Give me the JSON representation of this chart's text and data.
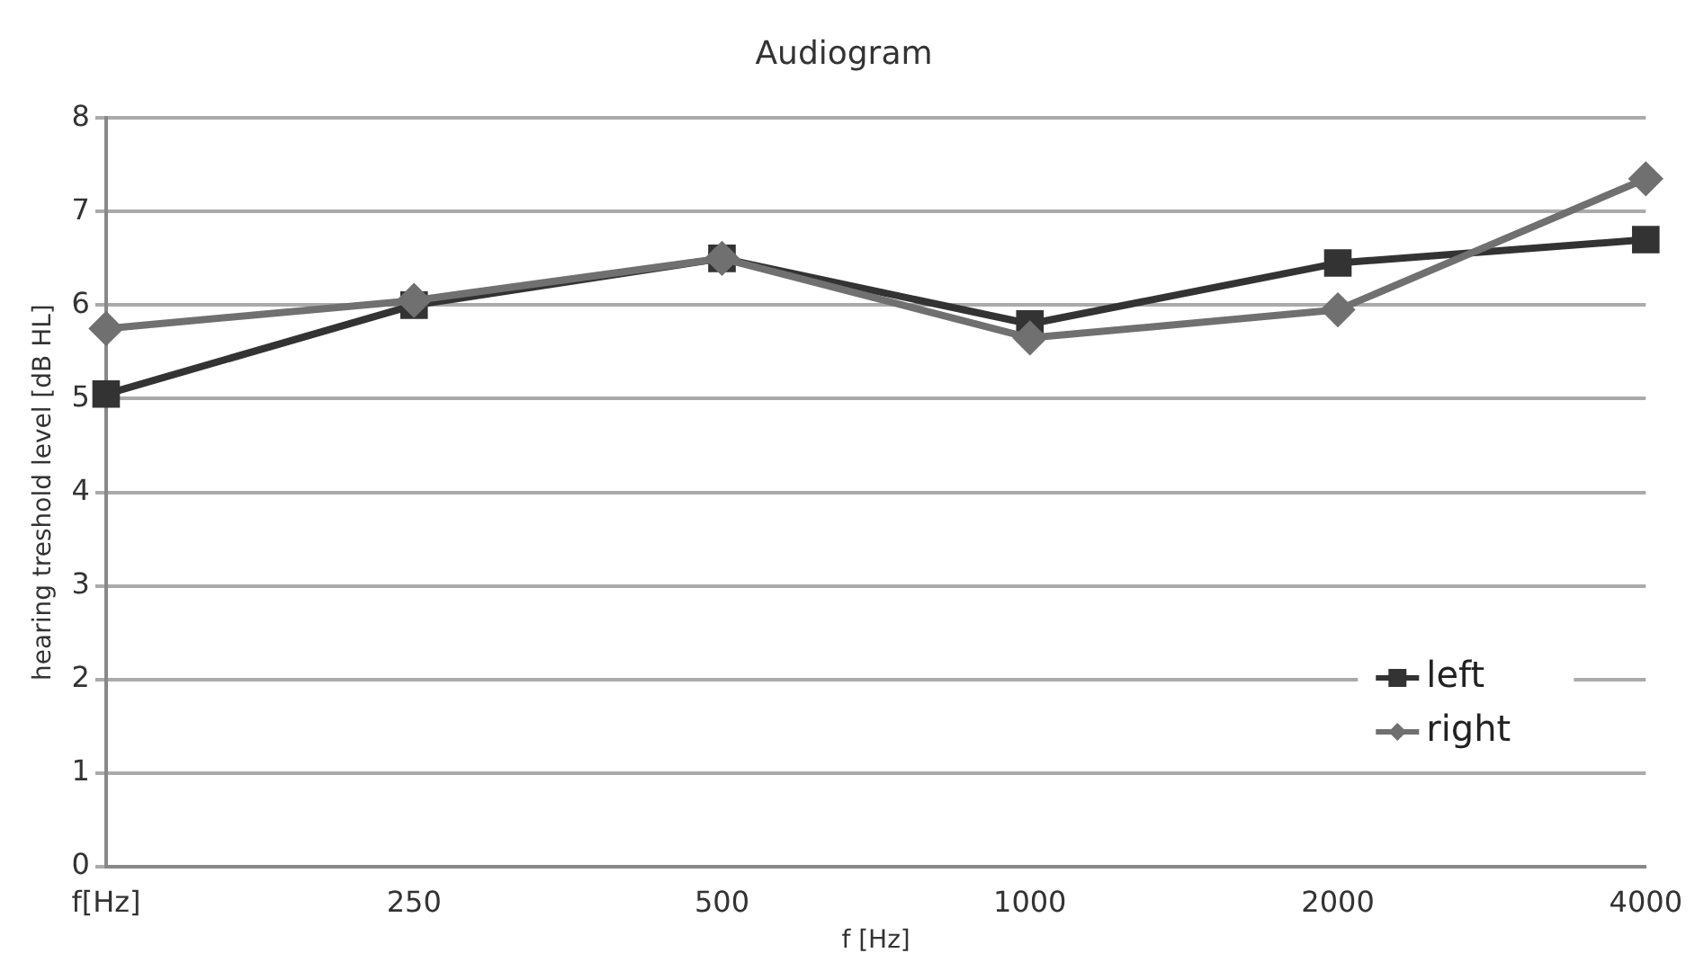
{
  "chart_data": {
    "type": "line",
    "title": "Audiogram",
    "xlabel": "f [Hz]",
    "ylabel": "hearing treshold level [dB HL]",
    "categories": [
      "f[Hz]",
      "250",
      "500",
      "1000",
      "2000",
      "4000"
    ],
    "series": [
      {
        "name": "left",
        "color": "#333333",
        "marker": "square",
        "values": [
          5.05,
          6.0,
          6.5,
          5.8,
          6.45,
          6.7
        ]
      },
      {
        "name": "right",
        "color": "#707070",
        "marker": "diamond",
        "values": [
          5.75,
          6.05,
          6.5,
          5.65,
          5.95,
          7.35
        ]
      }
    ],
    "ylim": [
      0,
      8
    ],
    "yticks": [
      0,
      1,
      2,
      3,
      4,
      5,
      6,
      7,
      8
    ],
    "grid": "y",
    "legend": "bottom right",
    "line_style": "solid"
  }
}
